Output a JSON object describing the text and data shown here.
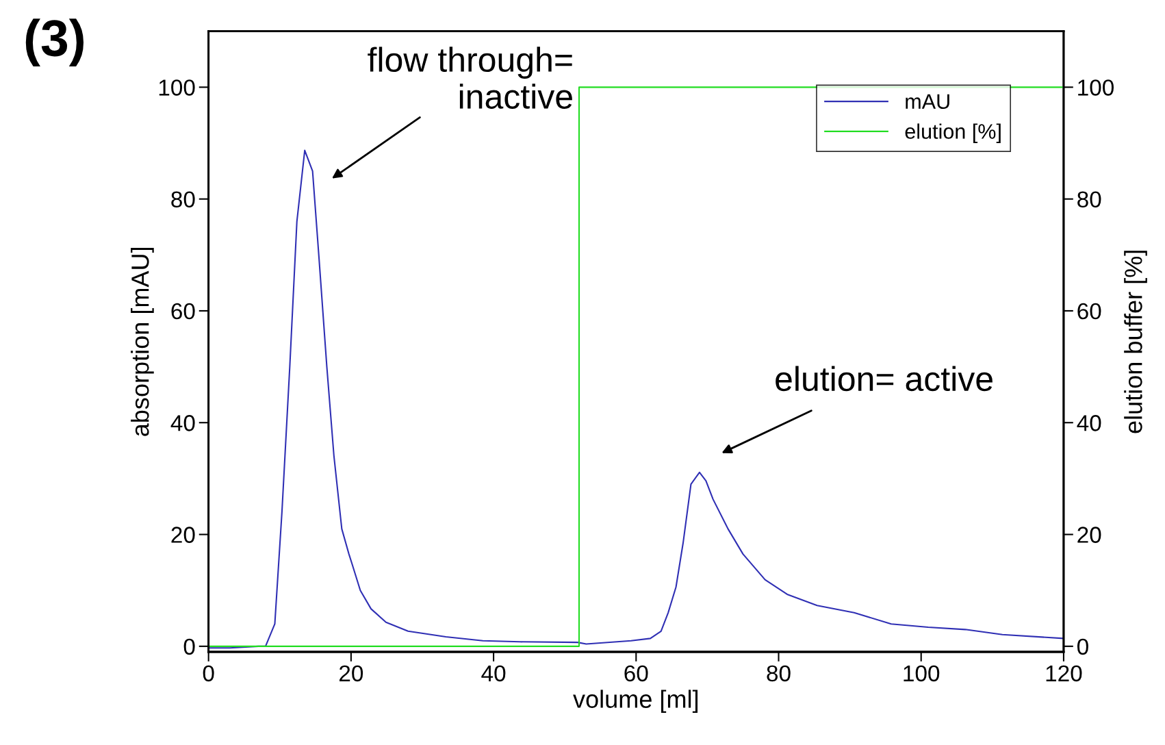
{
  "chart_data": {
    "type": "line",
    "xlabel": "volume [ml]",
    "ylabel": "absorption [mAU]",
    "y2label": "elution buffer [%]",
    "xlim": [
      0,
      120
    ],
    "xticks": [
      0,
      20,
      40,
      60,
      80,
      100,
      120
    ],
    "ylim": [
      -1,
      110
    ],
    "yticks": [
      0,
      20,
      40,
      60,
      80,
      100
    ],
    "y2lim": [
      -1,
      110
    ],
    "y2ticks": [
      0,
      20,
      40,
      60,
      80,
      100
    ],
    "legend": "top right",
    "grid": false,
    "series": [
      {
        "name": "mAU",
        "color": "#2f2fb4",
        "x": [
          0,
          3,
          7,
          8,
          9.3,
          10.3,
          11.4,
          12.4,
          13.5,
          14.6,
          15.5,
          16.6,
          17.6,
          18.7,
          19.7,
          20.2,
          21.3,
          22.8,
          24.9,
          28,
          33.3,
          38.5,
          43.7,
          51.8,
          53,
          59.3,
          62,
          63.5,
          64.5,
          65.6,
          66.6,
          67.7,
          68.9,
          69.8,
          70.8,
          72.9,
          75,
          78.1,
          81.2,
          85.4,
          90.6,
          95.8,
          101,
          106.2,
          111.4,
          120
        ],
        "values": [
          -0.3,
          -0.3,
          0,
          0,
          4,
          24,
          50,
          76,
          88.7,
          85,
          69.5,
          50,
          34,
          21,
          16.5,
          14.5,
          10,
          6.7,
          4.3,
          2.7,
          1.7,
          1,
          0.8,
          0.7,
          0.4,
          1,
          1.4,
          2.7,
          6,
          10.6,
          18.5,
          29,
          31.1,
          29.6,
          26.3,
          21,
          16.5,
          11.9,
          9.3,
          7.3,
          6,
          4,
          3.4,
          3,
          2.1,
          1.4
        ]
      },
      {
        "name": "elution [%]",
        "color": "#22dd22",
        "axis": "y2",
        "x": [
          0,
          52,
          52,
          120
        ],
        "values": [
          0,
          0,
          100,
          100
        ]
      }
    ],
    "annotations": [
      "(3)",
      "flow through=\ninactive",
      "elution= active"
    ]
  }
}
